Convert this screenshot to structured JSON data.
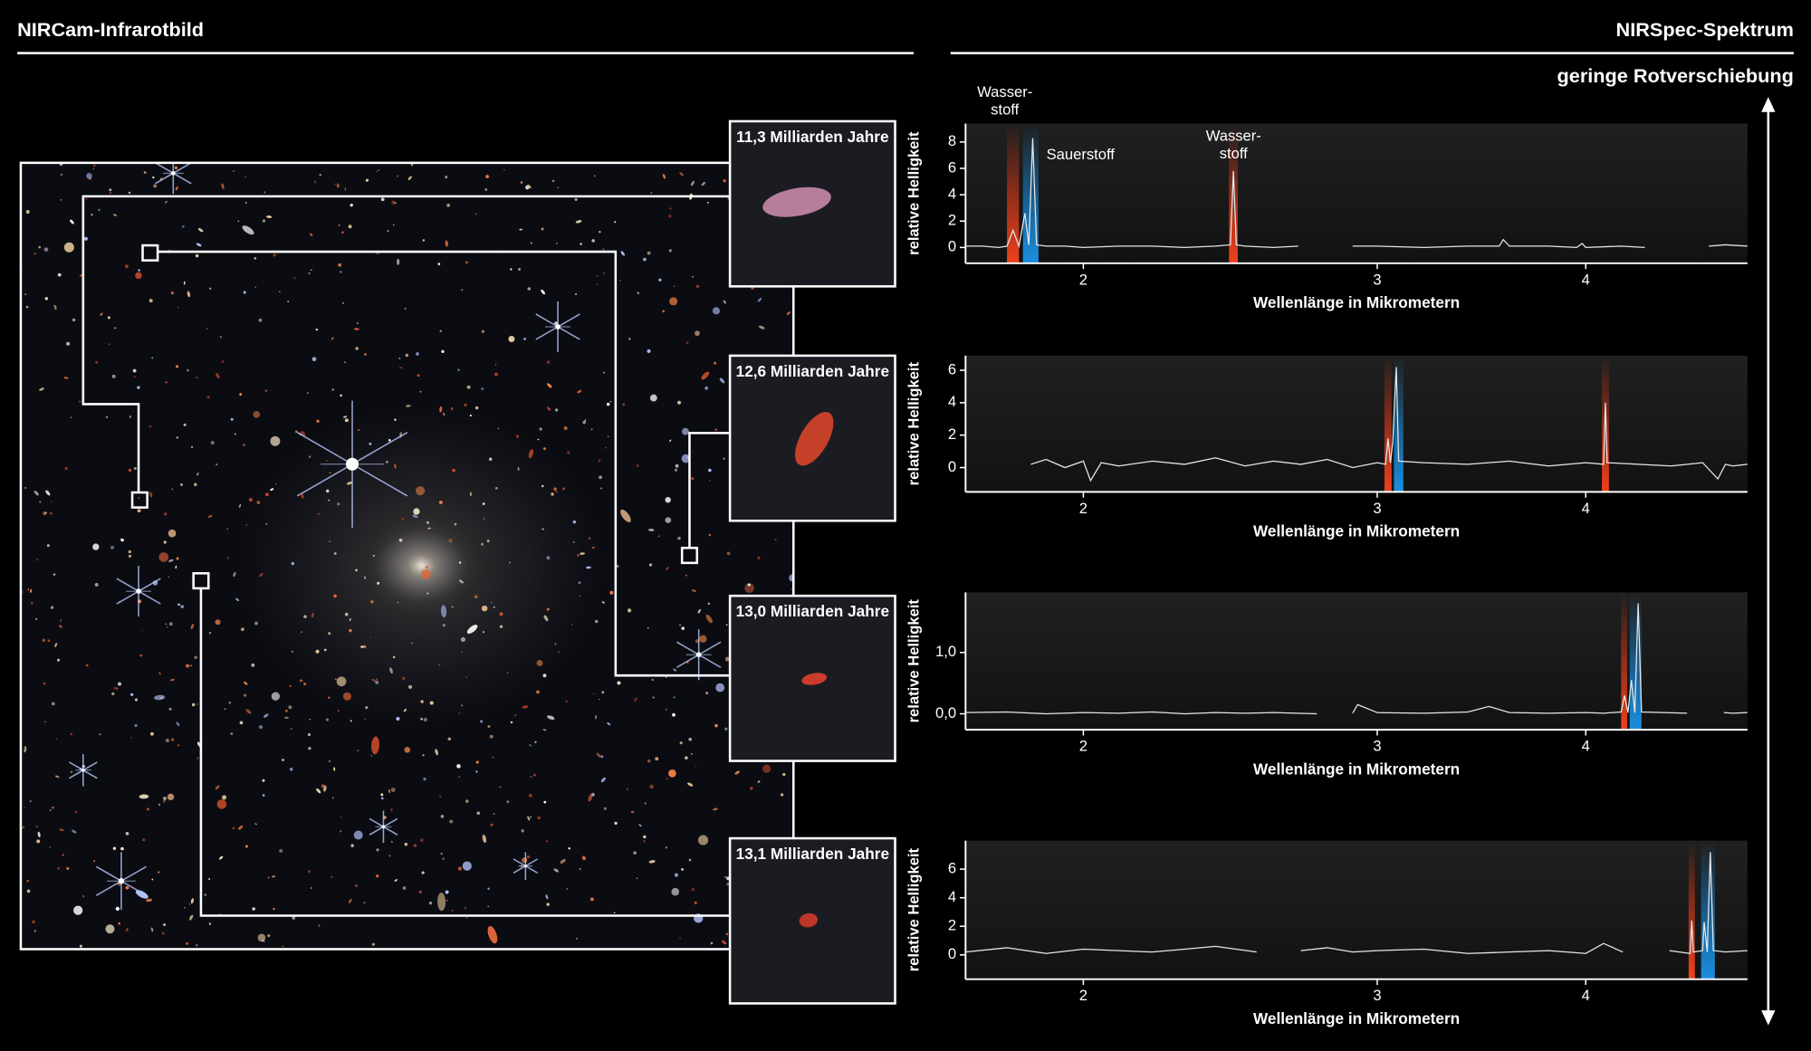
{
  "header": {
    "left_title": "NIRCam-Infrarotbild",
    "right_title": "NIRSpec-Spektrum",
    "arrow_label": "geringe Rotverschiebung"
  },
  "cutouts": [
    "11,3 Milliarden Jahre",
    "12,6 Milliarden Jahre",
    "13,0 Milliarden Jahre",
    "13,1 Milliarden Jahre"
  ],
  "chart_data": [
    {
      "type": "line",
      "xlabel": "Wellenlänge in Mikrometern",
      "ylabel": "relative Helligkeit",
      "xscale": "log",
      "xlim": [
        1.7,
        5.0
      ],
      "xticks": [
        2,
        3,
        4
      ],
      "ylim": [
        -1.2,
        9.4
      ],
      "yticks": [
        0,
        2,
        4,
        6,
        8
      ],
      "color": "#e6e6e6",
      "x": [
        1.7,
        1.74,
        1.78,
        1.8,
        1.815,
        1.83,
        1.845,
        1.855,
        1.865,
        1.875,
        1.9,
        1.95,
        2.0,
        2.1,
        2.2,
        2.3,
        2.4,
        2.45,
        2.46,
        2.47,
        2.5,
        2.6,
        2.69,
        2.8,
        2.9,
        3.0,
        3.2,
        3.4,
        3.55,
        3.57,
        3.6,
        3.8,
        3.95,
        3.98,
        4.0,
        4.2,
        4.34,
        4.5,
        4.74,
        4.85,
        5.0
      ],
      "values": [
        0.1,
        0.1,
        0.0,
        0.1,
        1.3,
        0.1,
        2.6,
        0.2,
        8.3,
        0.2,
        0.1,
        0.1,
        0.0,
        0.1,
        0.1,
        0.0,
        0.1,
        0.2,
        5.8,
        0.2,
        0.1,
        0.0,
        0.1,
        null,
        0.1,
        0.1,
        0.0,
        0.1,
        0.1,
        0.6,
        0.1,
        0.1,
        0.0,
        0.3,
        0.0,
        0.1,
        0.0,
        null,
        0.1,
        0.2,
        0.1
      ],
      "highlights": [
        {
          "xlim": [
            1.8,
            1.83
          ],
          "color": "#f0401c"
        },
        {
          "xlim": [
            1.84,
            1.88
          ],
          "color": "#1a8fe0"
        },
        {
          "xlim": [
            2.445,
            2.475
          ],
          "color": "#f0401c"
        }
      ],
      "annotations": [
        {
          "text": "Wasser-\nstoff"
        },
        {
          "text": "Sauerstoff"
        },
        {
          "text": "Wasser-\nstoff"
        }
      ]
    },
    {
      "type": "line",
      "xlabel": "Wellenlänge in Mikrometern",
      "ylabel": "relative Helligkeit",
      "xscale": "log",
      "xlim": [
        1.7,
        5.0
      ],
      "xticks": [
        2,
        3,
        4
      ],
      "ylim": [
        -1.5,
        6.9
      ],
      "yticks": [
        0,
        2,
        4,
        6
      ],
      "color": "#e6e6e6",
      "x": [
        1.86,
        1.9,
        1.95,
        2.0,
        2.02,
        2.05,
        2.1,
        2.2,
        2.3,
        2.4,
        2.5,
        2.6,
        2.7,
        2.8,
        2.9,
        3.0,
        3.035,
        3.045,
        3.055,
        3.065,
        3.08,
        3.09,
        3.2,
        3.4,
        3.6,
        3.8,
        4.0,
        4.1,
        4.11,
        4.12,
        4.3,
        4.5,
        4.7,
        4.8,
        4.85,
        4.9,
        5.0
      ],
      "values": [
        0.2,
        0.5,
        0.0,
        0.4,
        -0.8,
        0.3,
        0.1,
        0.4,
        0.2,
        0.6,
        0.1,
        0.4,
        0.2,
        0.5,
        0.0,
        0.3,
        0.2,
        1.8,
        0.3,
        1.6,
        6.2,
        0.4,
        0.3,
        0.2,
        0.4,
        0.1,
        0.3,
        0.2,
        4.0,
        0.3,
        0.2,
        0.1,
        0.3,
        -0.7,
        0.2,
        0.1,
        0.2
      ],
      "highlights": [
        {
          "xlim": [
            3.03,
            3.06
          ],
          "color": "#f0401c"
        },
        {
          "xlim": [
            3.07,
            3.11
          ],
          "color": "#1a8fe0"
        },
        {
          "xlim": [
            4.09,
            4.13
          ],
          "color": "#f0401c"
        }
      ]
    },
    {
      "type": "line",
      "xlabel": "Wellenlänge in Mikrometern",
      "ylabel": "relative Helligkeit",
      "xscale": "log",
      "xlim": [
        1.7,
        5.0
      ],
      "xticks": [
        2,
        3,
        4
      ],
      "ylim": [
        -0.26,
        1.98
      ],
      "yticks": [
        {
          "value": 0,
          "label": "0,0"
        },
        {
          "value": 1,
          "label": "1,0"
        }
      ],
      "color": "#e6e6e6",
      "x": [
        1.7,
        1.8,
        1.9,
        2.0,
        2.1,
        2.2,
        2.3,
        2.4,
        2.5,
        2.6,
        2.76,
        2.83,
        2.9,
        2.92,
        3.0,
        3.2,
        3.4,
        3.5,
        3.6,
        3.8,
        4.0,
        4.1,
        4.2,
        4.22,
        4.24,
        4.26,
        4.28,
        4.3,
        4.32,
        4.45,
        4.6,
        4.72,
        4.84,
        4.9,
        5.0
      ],
      "values": [
        0.02,
        0.03,
        0.0,
        0.02,
        0.01,
        0.03,
        0.0,
        0.02,
        0.01,
        0.02,
        0.0,
        null,
        0.01,
        0.15,
        0.02,
        0.01,
        0.03,
        0.12,
        0.02,
        0.01,
        0.02,
        0.01,
        0.03,
        0.3,
        0.02,
        0.55,
        0.02,
        1.8,
        0.03,
        0.02,
        0.01,
        null,
        0.02,
        0.01,
        0.02
      ],
      "highlights": [
        {
          "xlim": [
            4.2,
            4.235
          ],
          "color": "#f0401c"
        },
        {
          "xlim": [
            4.25,
            4.32
          ],
          "color": "#1a8fe0"
        }
      ]
    },
    {
      "type": "line",
      "xlabel": "Wellenlänge in Mikrometern",
      "ylabel": "relative Helligkeit",
      "xscale": "log",
      "xlim": [
        1.7,
        5.0
      ],
      "xticks": [
        2,
        3,
        4
      ],
      "ylim": [
        -1.7,
        8.0
      ],
      "yticks": [
        0,
        2,
        4,
        6
      ],
      "color": "#e6e6e6",
      "x": [
        1.7,
        1.8,
        1.9,
        2.0,
        2.1,
        2.2,
        2.3,
        2.4,
        2.54,
        2.62,
        2.7,
        2.8,
        2.9,
        3.0,
        3.2,
        3.4,
        3.6,
        3.8,
        4.0,
        4.1,
        4.21,
        4.35,
        4.49,
        4.55,
        4.62,
        4.63,
        4.64,
        4.7,
        4.71,
        4.73,
        4.75,
        4.77,
        4.85,
        5.0
      ],
      "values": [
        0.2,
        0.5,
        0.1,
        0.4,
        0.3,
        0.2,
        0.4,
        0.6,
        0.2,
        null,
        0.3,
        0.5,
        0.2,
        0.3,
        0.4,
        0.1,
        0.2,
        0.3,
        0.1,
        0.8,
        0.2,
        null,
        0.3,
        0.2,
        0.1,
        2.4,
        0.2,
        0.3,
        2.3,
        0.2,
        7.2,
        0.3,
        0.2,
        0.3
      ],
      "highlights": [
        {
          "xlim": [
            4.61,
            4.65
          ],
          "color": "#f0401c"
        },
        {
          "xlim": [
            4.69,
            4.78
          ],
          "color": "#1a8fe0"
        }
      ]
    }
  ]
}
